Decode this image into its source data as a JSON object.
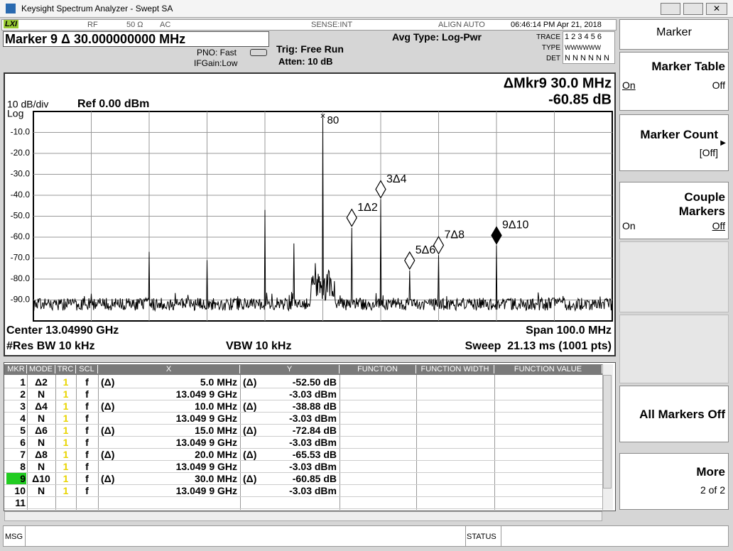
{
  "window": {
    "title": "Keysight Spectrum Analyzer - Swept SA"
  },
  "status_bar": {
    "lxi": "LXI",
    "rf": "RF",
    "impedance": "50 Ω",
    "coupling": "AC",
    "sense": "SENSE:INT",
    "align": "ALIGN AUTO",
    "datetime": "06:46:14 PM Apr 21, 2018"
  },
  "header": {
    "marker_readout": "Marker 9 Δ 30.000000000 MHz",
    "pno": "PNO: Fast",
    "ifgain": "IFGain:Low",
    "trig": "Trig: Free Run",
    "atten": "Atten: 10 dB",
    "avg_type": "Avg Type: Log-Pwr",
    "trace_table": {
      "labels": [
        "TRACE",
        "TYPE",
        "DET"
      ],
      "trace": "1 2 3 4 5 6",
      "type": "WWWWWW",
      "det": "N N N N N N"
    }
  },
  "display": {
    "delta_marker": "ΔMkr9 30.0 MHz",
    "delta_value": "-60.85 dB",
    "scale": "10 dB/div",
    "ref": "Ref 0.00 dBm",
    "log": "Log",
    "y_labels": [
      "-10.0",
      "-20.0",
      "-30.0",
      "-40.0",
      "-50.0",
      "-60.0",
      "-70.0",
      "-80.0",
      "-90.0"
    ],
    "ref_marker_label": "80",
    "marker_labels": [
      "1Δ2",
      "3Δ4",
      "5Δ6",
      "7Δ8",
      "9Δ10"
    ],
    "center": "Center 13.04990 GHz",
    "span": "Span 100.0 MHz",
    "res_bw": "#Res BW 10 kHz",
    "vbw": "VBW 10 kHz",
    "sweep": "Sweep  21.13 ms (1001 pts)"
  },
  "table": {
    "headers": [
      "MKR",
      "MODE",
      "TRC",
      "SCL",
      "X",
      "Y",
      "FUNCTION",
      "FUNCTION WIDTH",
      "FUNCTION VALUE"
    ],
    "rows": [
      {
        "mkr": "1",
        "mode": "Δ2",
        "trc": "1",
        "scl": "f",
        "x_ref": "(Δ)",
        "x": "5.0 MHz",
        "y_ref": "(Δ)",
        "y": "-52.50 dB"
      },
      {
        "mkr": "2",
        "mode": "N",
        "trc": "1",
        "scl": "f",
        "x": "13.049 9 GHz",
        "y": "-3.03 dBm"
      },
      {
        "mkr": "3",
        "mode": "Δ4",
        "trc": "1",
        "scl": "f",
        "x_ref": "(Δ)",
        "x": "10.0 MHz",
        "y_ref": "(Δ)",
        "y": "-38.88 dB"
      },
      {
        "mkr": "4",
        "mode": "N",
        "trc": "1",
        "scl": "f",
        "x": "13.049 9 GHz",
        "y": "-3.03 dBm"
      },
      {
        "mkr": "5",
        "mode": "Δ6",
        "trc": "1",
        "scl": "f",
        "x_ref": "(Δ)",
        "x": "15.0 MHz",
        "y_ref": "(Δ)",
        "y": "-72.84 dB"
      },
      {
        "mkr": "6",
        "mode": "N",
        "trc": "1",
        "scl": "f",
        "x": "13.049 9 GHz",
        "y": "-3.03 dBm"
      },
      {
        "mkr": "7",
        "mode": "Δ8",
        "trc": "1",
        "scl": "f",
        "x_ref": "(Δ)",
        "x": "20.0 MHz",
        "y_ref": "(Δ)",
        "y": "-65.53 dB"
      },
      {
        "mkr": "8",
        "mode": "N",
        "trc": "1",
        "scl": "f",
        "x": "13.049 9 GHz",
        "y": "-3.03 dBm"
      },
      {
        "mkr": "9",
        "mode": "Δ10",
        "trc": "1",
        "scl": "f",
        "x_ref": "(Δ)",
        "x": "30.0 MHz",
        "y_ref": "(Δ)",
        "y": "-60.85 dB"
      },
      {
        "mkr": "10",
        "mode": "N",
        "trc": "1",
        "scl": "f",
        "x": "13.049 9 GHz",
        "y": "-3.03 dBm"
      },
      {
        "mkr": "11"
      }
    ]
  },
  "softkeys": {
    "menu": "Marker",
    "marker_table": {
      "label": "Marker Table",
      "on": "On",
      "off": "Off"
    },
    "marker_count": {
      "label": "Marker Count",
      "state": "[Off]"
    },
    "couple_markers": {
      "label_1": "Couple",
      "label_2": "Markers",
      "on": "On",
      "off": "Off"
    },
    "all_markers_off": "All Markers Off",
    "more": {
      "label": "More",
      "page": "2 of 2"
    }
  },
  "message_bar": {
    "msg": "MSG",
    "status": "STATUS"
  }
}
